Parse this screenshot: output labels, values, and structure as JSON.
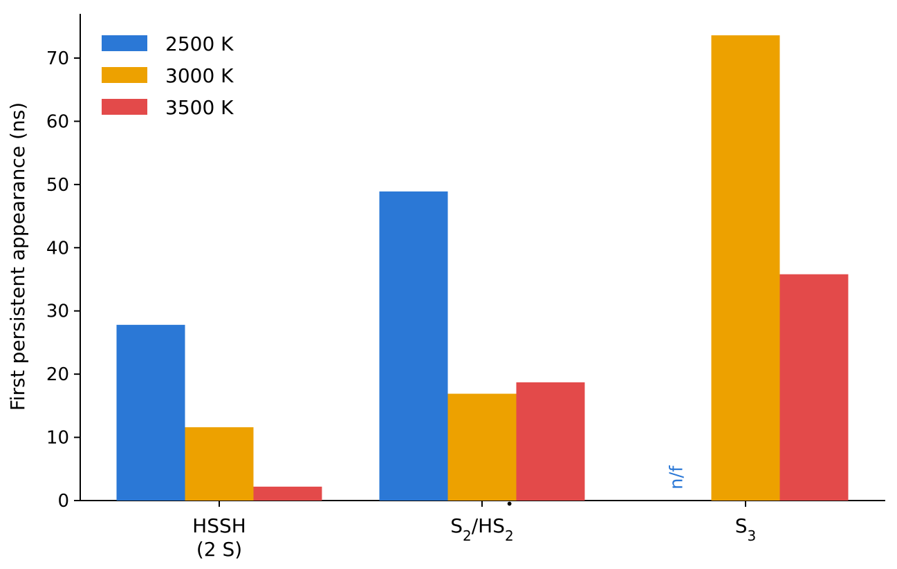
{
  "chart_data": {
    "type": "bar",
    "ylabel": "First persistent appearance (ns)",
    "xlabel": "",
    "ylim": [
      0,
      77
    ],
    "yticks": [
      0,
      10,
      20,
      30,
      40,
      50,
      60,
      70
    ],
    "grid": false,
    "legend_position": "top-left",
    "categories": [
      {
        "lines": [
          "HSSH",
          "(2 S)"
        ]
      },
      {
        "base": "S",
        "sub": "2",
        "mid": "/HS",
        "sub2": "2",
        "sup2": "•"
      },
      {
        "base": "S",
        "sub": "3"
      }
    ],
    "series": [
      {
        "name": "2500 K",
        "color": "#2b78d6",
        "values": [
          27.8,
          48.9,
          null
        ]
      },
      {
        "name": "3000 K",
        "color": "#eda100",
        "values": [
          11.6,
          16.9,
          73.6
        ]
      },
      {
        "name": "3500 K",
        "color": "#e34a4a",
        "values": [
          2.2,
          18.7,
          35.8
        ]
      }
    ],
    "annotations": [
      {
        "text": "n/f",
        "category_index": 2,
        "series_index": 0,
        "color": "#2b78d6"
      }
    ]
  }
}
